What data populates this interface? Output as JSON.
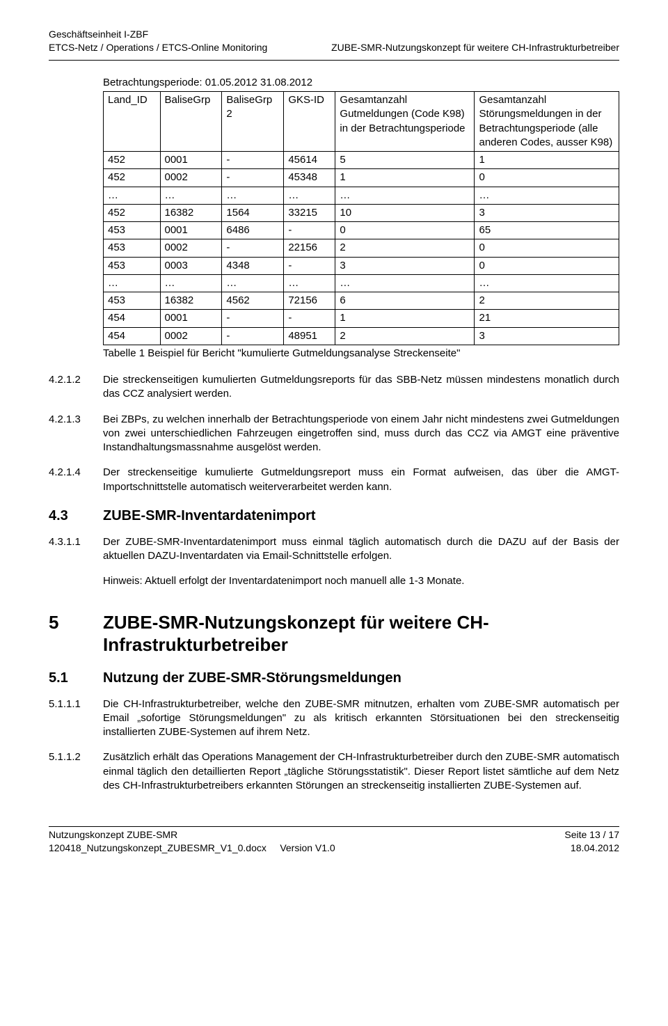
{
  "header": {
    "left_line1": "Geschäftseinheit I-ZBF",
    "left_line2": "ETCS-Netz / Operations / ETCS-Online Monitoring",
    "right_line": "ZUBE-SMR-Nutzungskonzept für weitere CH-Infrastrukturbetreiber"
  },
  "period_line": "Betrachtungsperiode: 01.05.2012 31.08.2012",
  "table": {
    "columns": [
      "Land_ID",
      "BaliseGrp",
      "BaliseGrp 2",
      "GKS-ID",
      "Gesamtanzahl Gutmeldungen (Code K98) in der Betrachtungsperiode",
      "Gesamtanzahl Störungsmeldungen in der Betrachtungsperiode (alle anderen Codes, ausser K98)"
    ],
    "col_widths": [
      "11%",
      "12%",
      "12%",
      "10%",
      "27%",
      "28%"
    ],
    "rows": [
      [
        "452",
        "0001",
        "-",
        "45614",
        "5",
        "1"
      ],
      [
        "452",
        "0002",
        "-",
        "45348",
        "1",
        "0"
      ],
      [
        "…",
        "…",
        "…",
        "…",
        "…",
        "…"
      ],
      [
        "452",
        "16382",
        "1564",
        "33215",
        "10",
        "3"
      ],
      [
        "453",
        "0001",
        "6486",
        "-",
        "0",
        "65"
      ],
      [
        "453",
        "0002",
        "-",
        "22156",
        "2",
        "0"
      ],
      [
        "453",
        "0003",
        "4348",
        "-",
        "3",
        "0"
      ],
      [
        "…",
        "…",
        "…",
        "…",
        "…",
        "…"
      ],
      [
        "453",
        "16382",
        "4562",
        "72156",
        "6",
        "2"
      ],
      [
        "454",
        "0001",
        "-",
        "-",
        "1",
        "21"
      ],
      [
        "454",
        "0002",
        "-",
        "48951",
        "2",
        "3"
      ]
    ],
    "caption": "Tabelle 1 Beispiel für Bericht \"kumulierte Gutmeldungsanalyse Streckenseite\""
  },
  "paragraphs": [
    {
      "num": "4.2.1.2",
      "text": "Die streckenseitigen kumulierten Gutmeldungsreports für das SBB-Netz müssen mindestens monatlich durch das CCZ analysiert werden."
    },
    {
      "num": "4.2.1.3",
      "text": "Bei ZBPs, zu welchen innerhalb der Betrachtungsperiode von einem Jahr nicht mindestens zwei Gutmeldungen von zwei unterschiedlichen Fahrzeugen eingetroffen sind, muss durch das CCZ via AMGT eine präventive Instandhaltungsmassnahme ausgelöst werden."
    },
    {
      "num": "4.2.1.4",
      "text": "Der streckenseitige kumulierte Gutmeldungsreport muss ein Format aufweisen, das über die AMGT-Importschnittstelle automatisch weiterverarbeitet werden kann."
    }
  ],
  "h43": {
    "num": "4.3",
    "title": "ZUBE-SMR-Inventardatenimport"
  },
  "p4311": {
    "num": "4.3.1.1",
    "text": "Der ZUBE-SMR-Inventardatenimport muss einmal täglich automatisch durch die DAZU auf der Basis der aktuellen DAZU-Inventardaten via Email-Schnittstelle erfolgen."
  },
  "hint": "Hinweis: Aktuell erfolgt der Inventardatenimport noch manuell alle 1-3 Monate.",
  "h5": {
    "num": "5",
    "title": "ZUBE-SMR-Nutzungskonzept für weitere CH-Infrastrukturbetreiber"
  },
  "h51": {
    "num": "5.1",
    "title": "Nutzung der ZUBE-SMR-Störungsmeldungen"
  },
  "p5111": {
    "num": "5.1.1.1",
    "text": "Die CH-Infrastrukturbetreiber, welche den ZUBE-SMR mitnutzen, erhalten vom ZUBE-SMR automatisch per Email „sofortige Störungsmeldungen\" zu als kritisch erkannten Störsituationen bei den streckenseitig installierten ZUBE-Systemen auf ihrem Netz."
  },
  "p5112": {
    "num": "5.1.1.2",
    "text": "Zusätzlich erhält das Operations Management der CH-Infrastrukturbetreiber durch den ZUBE-SMR automatisch einmal täglich den detaillierten Report „tägliche Störungsstatistik\". Dieser Report listet sämtliche auf dem Netz des CH-Infrastrukturbetreibers erkannten Störungen an streckenseitig installierten ZUBE-Systemen auf."
  },
  "footer": {
    "left1": "Nutzungskonzept ZUBE-SMR",
    "left2": "120418_Nutzungskonzept_ZUBESMR_V1_0.docx",
    "center": "Version V1.0",
    "right1": "Seite 13 / 17",
    "right2": "18.04.2012"
  }
}
